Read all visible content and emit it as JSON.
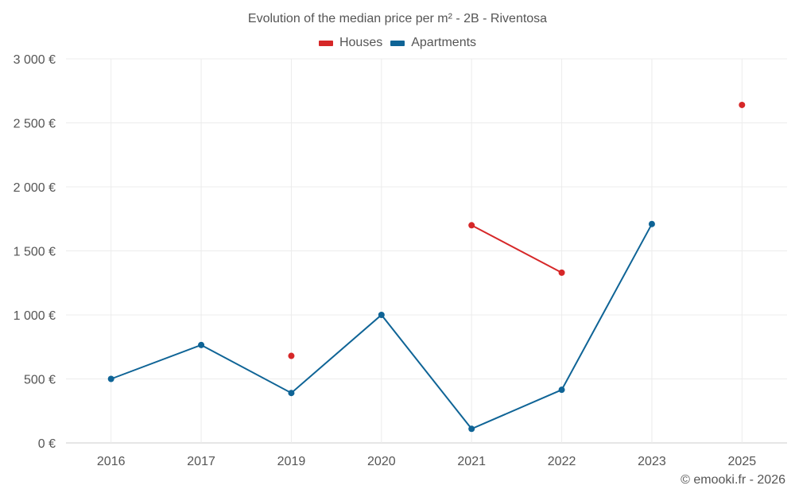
{
  "chart_data": {
    "type": "line",
    "title": "Evolution of the median price per m² - 2B - Riventosa",
    "categories": [
      "2016",
      "2017",
      "2019",
      "2020",
      "2021",
      "2022",
      "2023",
      "2025"
    ],
    "ylim": [
      0,
      3000
    ],
    "y_ticks": [
      0,
      500,
      1000,
      1500,
      2000,
      2500,
      3000
    ],
    "y_tick_labels": [
      "0 €",
      "500 €",
      "1 000 €",
      "1 500 €",
      "2 000 €",
      "2 500 €",
      "3 000 €"
    ],
    "series": [
      {
        "name": "Houses",
        "color": "#d62728",
        "values": [
          null,
          null,
          680,
          null,
          1700,
          1330,
          null,
          2640
        ]
      },
      {
        "name": "Apartments",
        "color": "#0f6496",
        "values": [
          500,
          765,
          390,
          1000,
          110,
          415,
          1710,
          null
        ]
      }
    ],
    "legend_position": "top-center",
    "grid": true
  },
  "credit": "© emooki.fr - 2026"
}
